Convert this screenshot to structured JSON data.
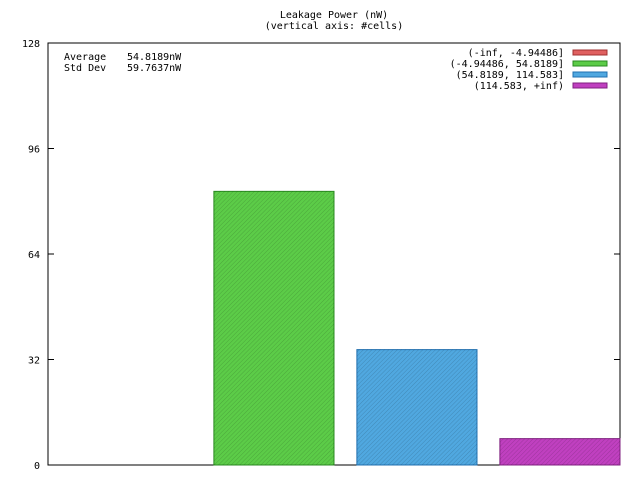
{
  "chart_data": {
    "type": "bar",
    "title": "Leakage Power (nW)",
    "subtitle": "(vertical axis: #cells)",
    "ylim": [
      0,
      128
    ],
    "yticks": [
      0,
      32,
      64,
      96,
      128
    ],
    "stats": [
      {
        "label": "Average",
        "value": "54.8189nW"
      },
      {
        "label": "Std Dev",
        "value": "59.7637nW"
      }
    ],
    "legend_position": "top-right",
    "categories": [
      "(-inf, -4.94486]",
      "(-4.94486, 54.8189]",
      "(54.8189, 114.583]",
      "(114.583, +inf)"
    ],
    "values": [
      0,
      83,
      35,
      8
    ],
    "colors": [
      "#e06060",
      "#5ccc48",
      "#50a8e0",
      "#c040c0"
    ],
    "stroke_colors": [
      "#a03030",
      "#2a8a20",
      "#2070b0",
      "#802080"
    ]
  }
}
